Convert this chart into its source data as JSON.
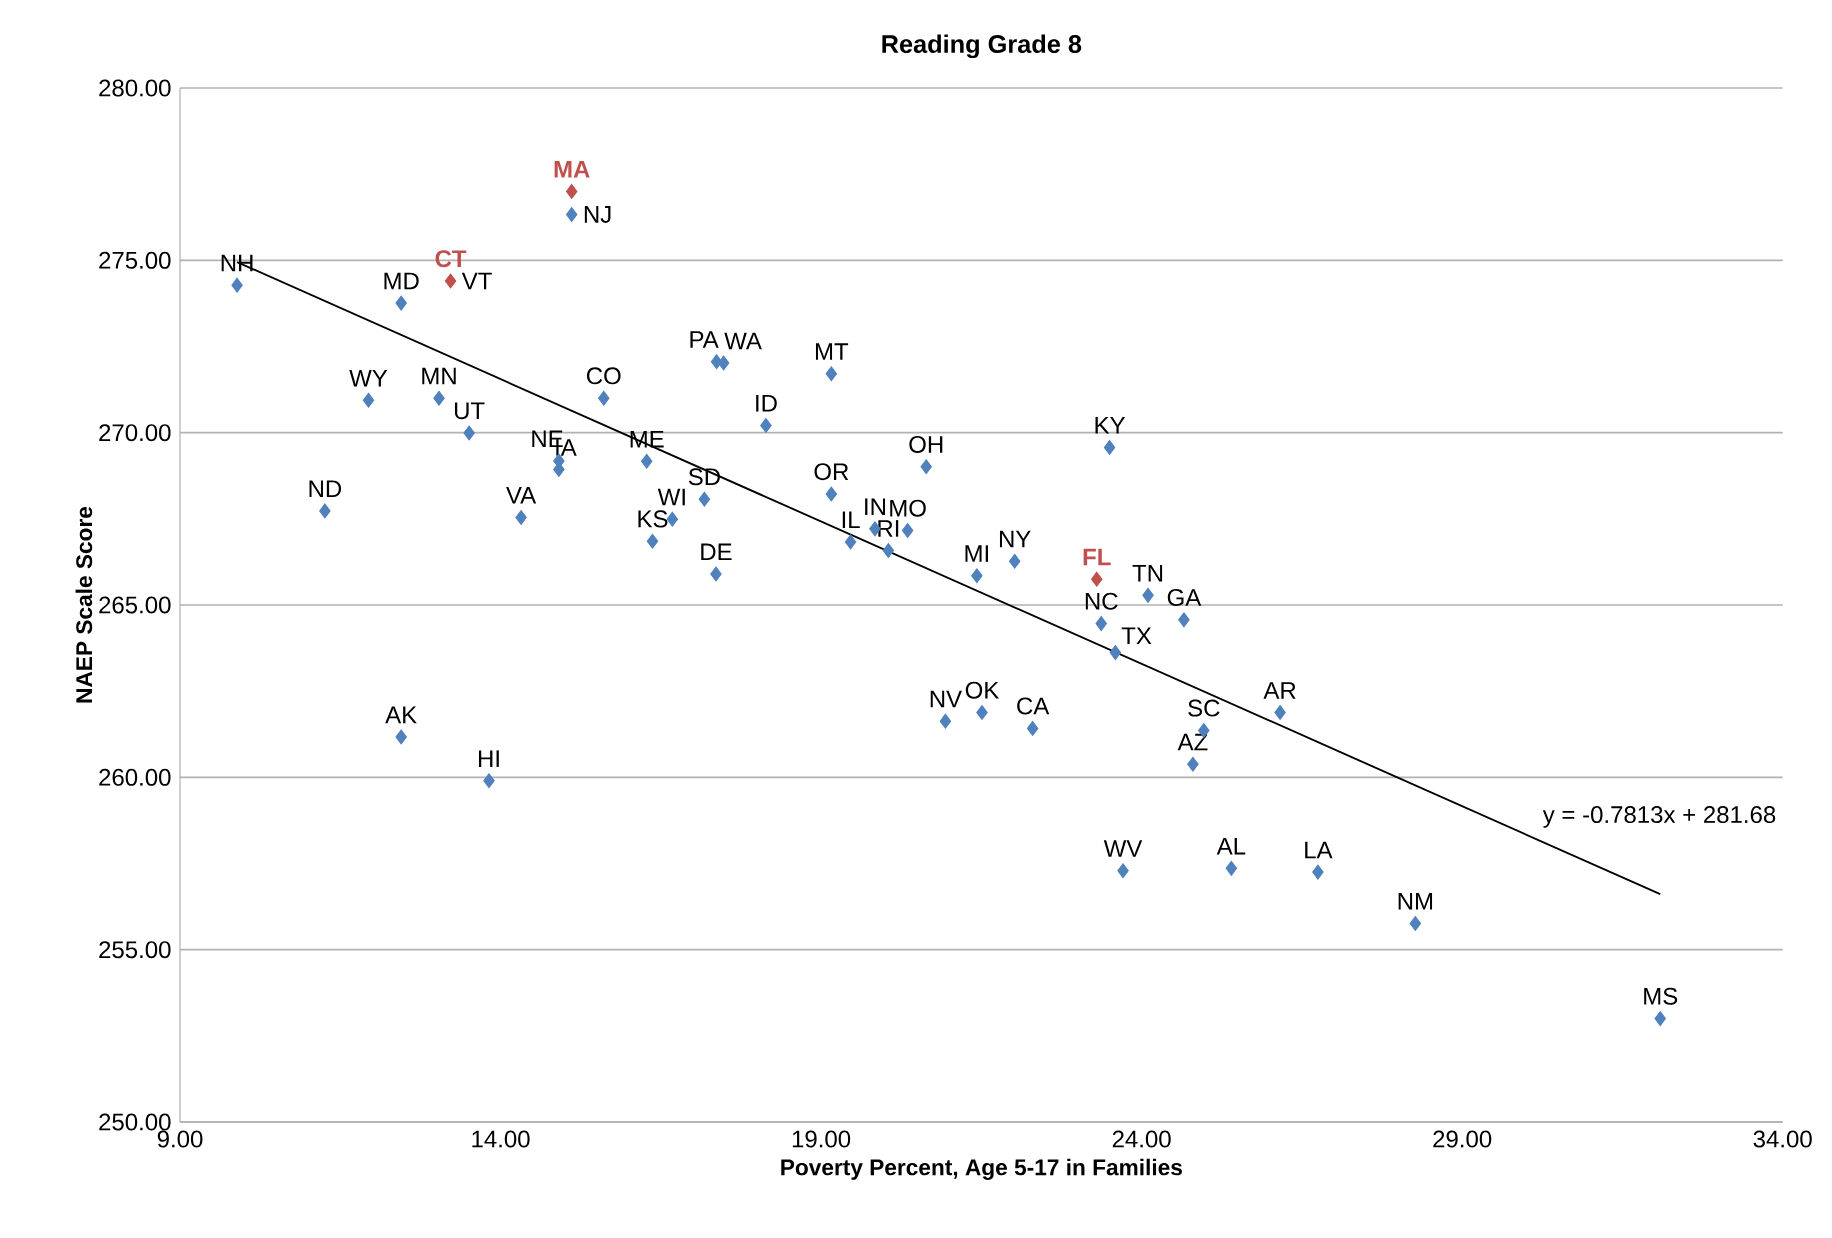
{
  "chart_data": {
    "type": "scatter",
    "title": "Reading Grade 8",
    "xlabel": "Poverty Percent, Age 5-17 in Families",
    "ylabel": "NAEP Scale Score",
    "xlim": [
      9,
      34
    ],
    "ylim": [
      250,
      280
    ],
    "xticks": [
      {
        "value": 9,
        "label": "9.00"
      },
      {
        "value": 14,
        "label": "14.00"
      },
      {
        "value": 19,
        "label": "19.00"
      },
      {
        "value": 24,
        "label": "24.00"
      },
      {
        "value": 29,
        "label": "29.00"
      },
      {
        "value": 34,
        "label": "34.00"
      }
    ],
    "yticks": [
      {
        "value": 250,
        "label": "250.00"
      },
      {
        "value": 255,
        "label": "255.00"
      },
      {
        "value": 260,
        "label": "260.00"
      },
      {
        "value": 265,
        "label": "265.00"
      },
      {
        "value": 270,
        "label": "270.00"
      },
      {
        "value": 275,
        "label": "275.00"
      },
      {
        "value": 280,
        "label": "280.00"
      }
    ],
    "grid": "y",
    "marker": "diamond",
    "series": [
      {
        "color": "#4f81bd",
        "x": [
          9.89,
          12.45,
          13.22,
          15.11,
          11.94,
          13.04,
          13.51,
          11.26,
          14.32,
          14.91,
          14.91,
          15.61,
          16.28,
          16.37,
          16.68,
          17.18,
          17.36,
          17.37,
          17.48,
          18.14,
          19.16,
          19.16,
          19.46,
          19.84,
          20.05,
          20.35,
          20.64,
          21.43,
          22.02,
          23.5,
          24.1,
          23.37,
          23.59,
          24.66,
          20.94,
          21.51,
          22.3,
          26.16,
          24.97,
          24.8,
          23.71,
          25.4,
          26.75,
          28.27,
          32.09,
          12.45,
          13.82
        ],
        "values": [
          274.28,
          273.76,
          null,
          276.33,
          270.94,
          271.0,
          269.99,
          267.73,
          267.54,
          269.18,
          268.93,
          271.0,
          269.17,
          266.85,
          267.49,
          268.07,
          265.9,
          272.06,
          272.02,
          270.21,
          271.71,
          268.22,
          266.83,
          267.21,
          266.58,
          267.16,
          269.01,
          265.85,
          266.27,
          269.57,
          265.28,
          264.46,
          263.62,
          264.57,
          261.63,
          261.88,
          261.42,
          261.88,
          261.36,
          260.38,
          257.29,
          257.36,
          257.25,
          255.76,
          253.0,
          261.17,
          259.9
        ]
      },
      {
        "color": "#c0504d",
        "x": [
          15.11,
          13.22,
          23.3
        ],
        "values": [
          277.0,
          274.4,
          265.75
        ]
      },
      {
        "type": "line",
        "color": "#000000",
        "marker": "none",
        "x": [
          9.89,
          32.09
        ],
        "values": [
          274.95,
          256.61
        ]
      }
    ],
    "annotations": [
      {
        "text": "NH",
        "x": 9.89,
        "y": 274.28
      },
      {
        "text": "MD",
        "x": 12.45,
        "y": 273.76
      },
      {
        "text": "VT",
        "x": 13.22,
        "y": 274.4
      },
      {
        "text": "NJ",
        "x": 15.11,
        "y": 276.33
      },
      {
        "text": "WY",
        "x": 11.94,
        "y": 270.94
      },
      {
        "text": "MN",
        "x": 13.04,
        "y": 271.0
      },
      {
        "text": "UT",
        "x": 13.51,
        "y": 269.99
      },
      {
        "text": "ND",
        "x": 11.26,
        "y": 267.73
      },
      {
        "text": "VA",
        "x": 14.32,
        "y": 267.54
      },
      {
        "text": "NE",
        "x": 14.91,
        "y": 269.18
      },
      {
        "text": "IA",
        "x": 14.91,
        "y": 268.93
      },
      {
        "text": "CO",
        "x": 15.61,
        "y": 271.0
      },
      {
        "text": "ME",
        "x": 16.28,
        "y": 269.17
      },
      {
        "text": "KS",
        "x": 16.37,
        "y": 266.85
      },
      {
        "text": "WI",
        "x": 16.68,
        "y": 267.49
      },
      {
        "text": "SD",
        "x": 17.18,
        "y": 268.07
      },
      {
        "text": "DE",
        "x": 17.36,
        "y": 265.9
      },
      {
        "text": "PA",
        "x": 17.37,
        "y": 272.06
      },
      {
        "text": "WA",
        "x": 17.48,
        "y": 272.02
      },
      {
        "text": "ID",
        "x": 18.14,
        "y": 270.21
      },
      {
        "text": "MT",
        "x": 19.16,
        "y": 271.71
      },
      {
        "text": "OR",
        "x": 19.16,
        "y": 268.22
      },
      {
        "text": "IL",
        "x": 19.46,
        "y": 266.83
      },
      {
        "text": "IN",
        "x": 19.84,
        "y": 267.21
      },
      {
        "text": "RI",
        "x": 20.05,
        "y": 266.58
      },
      {
        "text": "MO",
        "x": 20.35,
        "y": 267.16
      },
      {
        "text": "OH",
        "x": 20.64,
        "y": 269.01
      },
      {
        "text": "MI",
        "x": 21.43,
        "y": 265.85
      },
      {
        "text": "NY",
        "x": 22.02,
        "y": 266.27
      },
      {
        "text": "KY",
        "x": 23.5,
        "y": 269.57
      },
      {
        "text": "TN",
        "x": 24.1,
        "y": 265.28
      },
      {
        "text": "NC",
        "x": 23.37,
        "y": 264.46
      },
      {
        "text": "TX",
        "x": 23.59,
        "y": 263.62
      },
      {
        "text": "GA",
        "x": 24.66,
        "y": 264.57
      },
      {
        "text": "NV",
        "x": 20.94,
        "y": 261.63
      },
      {
        "text": "OK",
        "x": 21.51,
        "y": 261.88
      },
      {
        "text": "CA",
        "x": 22.3,
        "y": 261.42
      },
      {
        "text": "AR",
        "x": 26.16,
        "y": 261.88
      },
      {
        "text": "SC",
        "x": 24.97,
        "y": 261.36
      },
      {
        "text": "AZ",
        "x": 24.8,
        "y": 260.38
      },
      {
        "text": "WV",
        "x": 23.71,
        "y": 257.29
      },
      {
        "text": "AL",
        "x": 25.4,
        "y": 257.36
      },
      {
        "text": "LA",
        "x": 26.75,
        "y": 257.25
      },
      {
        "text": "NM",
        "x": 28.27,
        "y": 255.76
      },
      {
        "text": "MS",
        "x": 32.09,
        "y": 253.0
      },
      {
        "text": "AK",
        "x": 12.45,
        "y": 261.17
      },
      {
        "text": "HI",
        "x": 13.82,
        "y": 259.9
      },
      {
        "text": "MA",
        "x": 15.11,
        "y": 277.0
      },
      {
        "text": "CT",
        "x": 13.22,
        "y": 274.4
      },
      {
        "text": "FL",
        "x": 23.3,
        "y": 265.75
      },
      "y = -0.7813x + 281.68"
    ]
  }
}
